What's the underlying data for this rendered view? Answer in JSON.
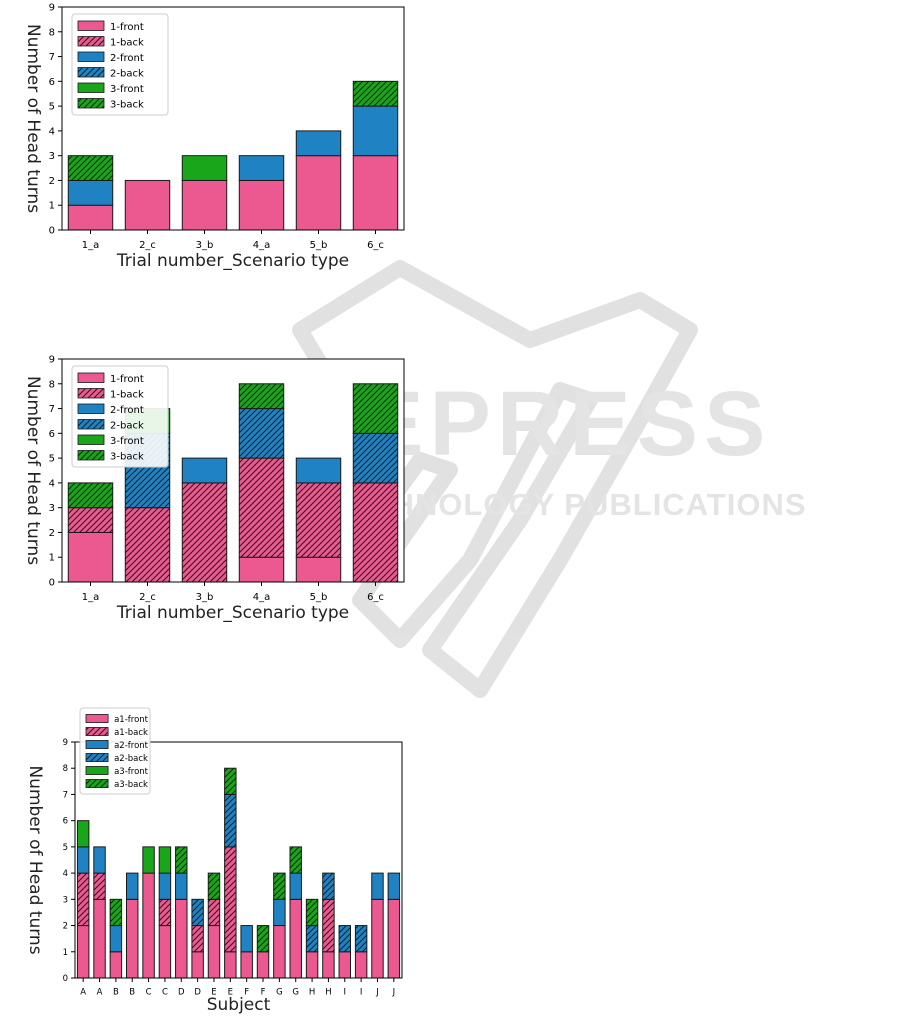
{
  "colors": {
    "series1": "#ec5890",
    "series2": "#1f83c3",
    "series3": "#1aa61a",
    "edge": "#1a1a1a",
    "watermark": "#d3d3d3"
  },
  "watermark": {
    "line1": "SCITEPRESS",
    "line2": "SCIENCE AND TECHNOLOGY PUBLICATIONS"
  },
  "chart_data": [
    {
      "type": "bar",
      "stacked": true,
      "title": "",
      "xlabel": "Trial number_Scenario type",
      "ylabel": "Number of Head turns",
      "ylim": [
        0,
        9
      ],
      "yticks": [
        "0",
        "1",
        "2",
        "3",
        "4",
        "5",
        "6",
        "7",
        "8",
        "9"
      ],
      "grid": false,
      "legend_position": "top-left",
      "categories": [
        "1_a",
        "2_c",
        "3_b",
        "4_a",
        "5_b",
        "6_c"
      ],
      "series": [
        {
          "name": "1-front",
          "color_key": "series1",
          "hatched": false,
          "values": [
            1,
            2,
            2,
            2,
            3,
            3
          ]
        },
        {
          "name": "1-back",
          "color_key": "series1",
          "hatched": true,
          "values": [
            0,
            0,
            0,
            0,
            0,
            0
          ]
        },
        {
          "name": "2-front",
          "color_key": "series2",
          "hatched": false,
          "values": [
            1,
            0,
            0,
            1,
            1,
            2
          ]
        },
        {
          "name": "2-back",
          "color_key": "series2",
          "hatched": true,
          "values": [
            0,
            0,
            0,
            0,
            0,
            0
          ]
        },
        {
          "name": "3-front",
          "color_key": "series3",
          "hatched": false,
          "values": [
            0,
            0,
            1,
            0,
            0,
            0
          ]
        },
        {
          "name": "3-back",
          "color_key": "series3",
          "hatched": true,
          "values": [
            1,
            0,
            0,
            0,
            0,
            1
          ]
        }
      ]
    },
    {
      "type": "bar",
      "stacked": true,
      "title": "",
      "xlabel": "Trial number_Scenario type",
      "ylabel": "Number of Head turns",
      "ylim": [
        0,
        9
      ],
      "yticks": [
        "0",
        "1",
        "2",
        "3",
        "4",
        "5",
        "6",
        "7",
        "8",
        "9"
      ],
      "grid": false,
      "legend_position": "top-left",
      "categories": [
        "1_a",
        "2_c",
        "3_b",
        "4_a",
        "5_b",
        "6_c"
      ],
      "series": [
        {
          "name": "1-front",
          "color_key": "series1",
          "hatched": false,
          "values": [
            2,
            0,
            0,
            1,
            1,
            0
          ]
        },
        {
          "name": "1-back",
          "color_key": "series1",
          "hatched": true,
          "values": [
            1,
            3,
            4,
            4,
            3,
            4
          ]
        },
        {
          "name": "2-front",
          "color_key": "series2",
          "hatched": false,
          "values": [
            0,
            0,
            1,
            0,
            1,
            0
          ]
        },
        {
          "name": "2-back",
          "color_key": "series2",
          "hatched": true,
          "values": [
            0,
            3,
            0,
            2,
            0,
            2
          ]
        },
        {
          "name": "3-front",
          "color_key": "series3",
          "hatched": false,
          "values": [
            0,
            1,
            0,
            0,
            0,
            0
          ]
        },
        {
          "name": "3-back",
          "color_key": "series3",
          "hatched": true,
          "values": [
            1,
            0,
            0,
            1,
            0,
            2
          ]
        }
      ]
    },
    {
      "type": "bar",
      "stacked": true,
      "title": "",
      "xlabel": "Subject",
      "ylabel": "Number of Head turns",
      "ylim": [
        0,
        9
      ],
      "yticks": [
        "0",
        "1",
        "2",
        "3",
        "4",
        "5",
        "6",
        "7",
        "8",
        "9"
      ],
      "grid": false,
      "legend_position": "top-left",
      "categories": [
        "A",
        "A",
        "B",
        "B",
        "C",
        "C",
        "D",
        "D",
        "E",
        "E",
        "F",
        "F",
        "G",
        "G",
        "H",
        "H",
        "I",
        "I",
        "J",
        "J"
      ],
      "series": [
        {
          "name": "a1-front",
          "color_key": "series1",
          "hatched": false,
          "values": [
            2,
            3,
            1,
            3,
            4,
            2,
            3,
            1,
            2,
            1,
            1,
            1,
            2,
            3,
            1,
            1,
            1,
            1,
            3,
            3
          ]
        },
        {
          "name": "a1-back",
          "color_key": "series1",
          "hatched": true,
          "values": [
            2,
            1,
            0,
            0,
            0,
            1,
            0,
            1,
            1,
            4,
            0,
            0,
            0,
            0,
            0,
            2,
            0,
            0,
            0,
            0
          ]
        },
        {
          "name": "a2-front",
          "color_key": "series2",
          "hatched": false,
          "values": [
            1,
            1,
            1,
            1,
            0,
            1,
            1,
            0,
            0,
            0,
            1,
            0,
            1,
            1,
            0,
            0,
            0,
            0,
            1,
            1
          ]
        },
        {
          "name": "a2-back",
          "color_key": "series2",
          "hatched": true,
          "values": [
            0,
            0,
            0,
            0,
            0,
            0,
            0,
            1,
            0,
            2,
            0,
            0,
            0,
            0,
            1,
            1,
            1,
            1,
            0,
            0
          ]
        },
        {
          "name": "a3-front",
          "color_key": "series3",
          "hatched": false,
          "values": [
            1,
            0,
            0,
            0,
            1,
            1,
            0,
            0,
            0,
            0,
            0,
            0,
            0,
            0,
            0,
            0,
            0,
            0,
            0,
            0
          ]
        },
        {
          "name": "a3-back",
          "color_key": "series3",
          "hatched": true,
          "values": [
            0,
            0,
            1,
            0,
            0,
            0,
            1,
            0,
            1,
            1,
            0,
            1,
            1,
            1,
            1,
            0,
            0,
            0,
            0,
            0
          ]
        }
      ]
    }
  ]
}
